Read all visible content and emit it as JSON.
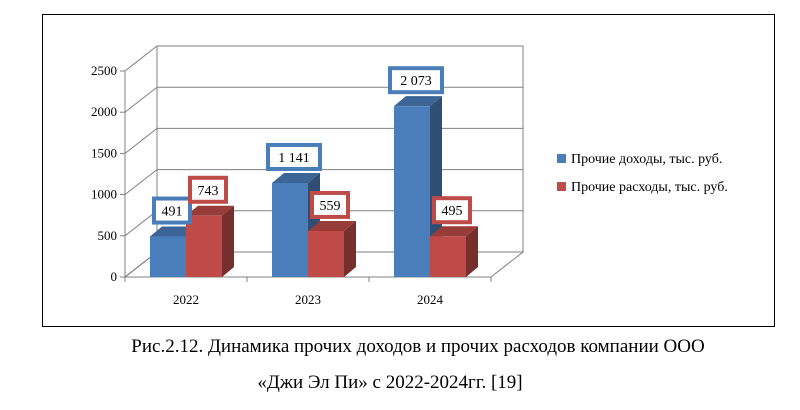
{
  "chart_data": {
    "type": "bar",
    "categories": [
      "2022",
      "2023",
      "2024"
    ],
    "series": [
      {
        "name": "Прочие доходы, тыс. руб.",
        "values": [
          491,
          1141,
          2073
        ],
        "labels": [
          "491",
          "1 141",
          "2 073"
        ],
        "color": "#4a7ebb"
      },
      {
        "name": "Прочие расходы, тыс. руб.",
        "values": [
          743,
          559,
          495
        ],
        "labels": [
          "743",
          "559",
          "495"
        ],
        "color": "#be4b48"
      }
    ],
    "yticks": [
      "0",
      "500",
      "1000",
      "1500",
      "2000",
      "2500"
    ],
    "ylim": [
      0,
      2500
    ],
    "grid": true,
    "legend_position": "right",
    "style": "3d-bar"
  },
  "caption": {
    "line1": "Рис.2.12. Динамика прочих доходов и прочих расходов компании ООО",
    "line2": "«Джи Эл Пи» с 2022-2024гг. [19]"
  }
}
